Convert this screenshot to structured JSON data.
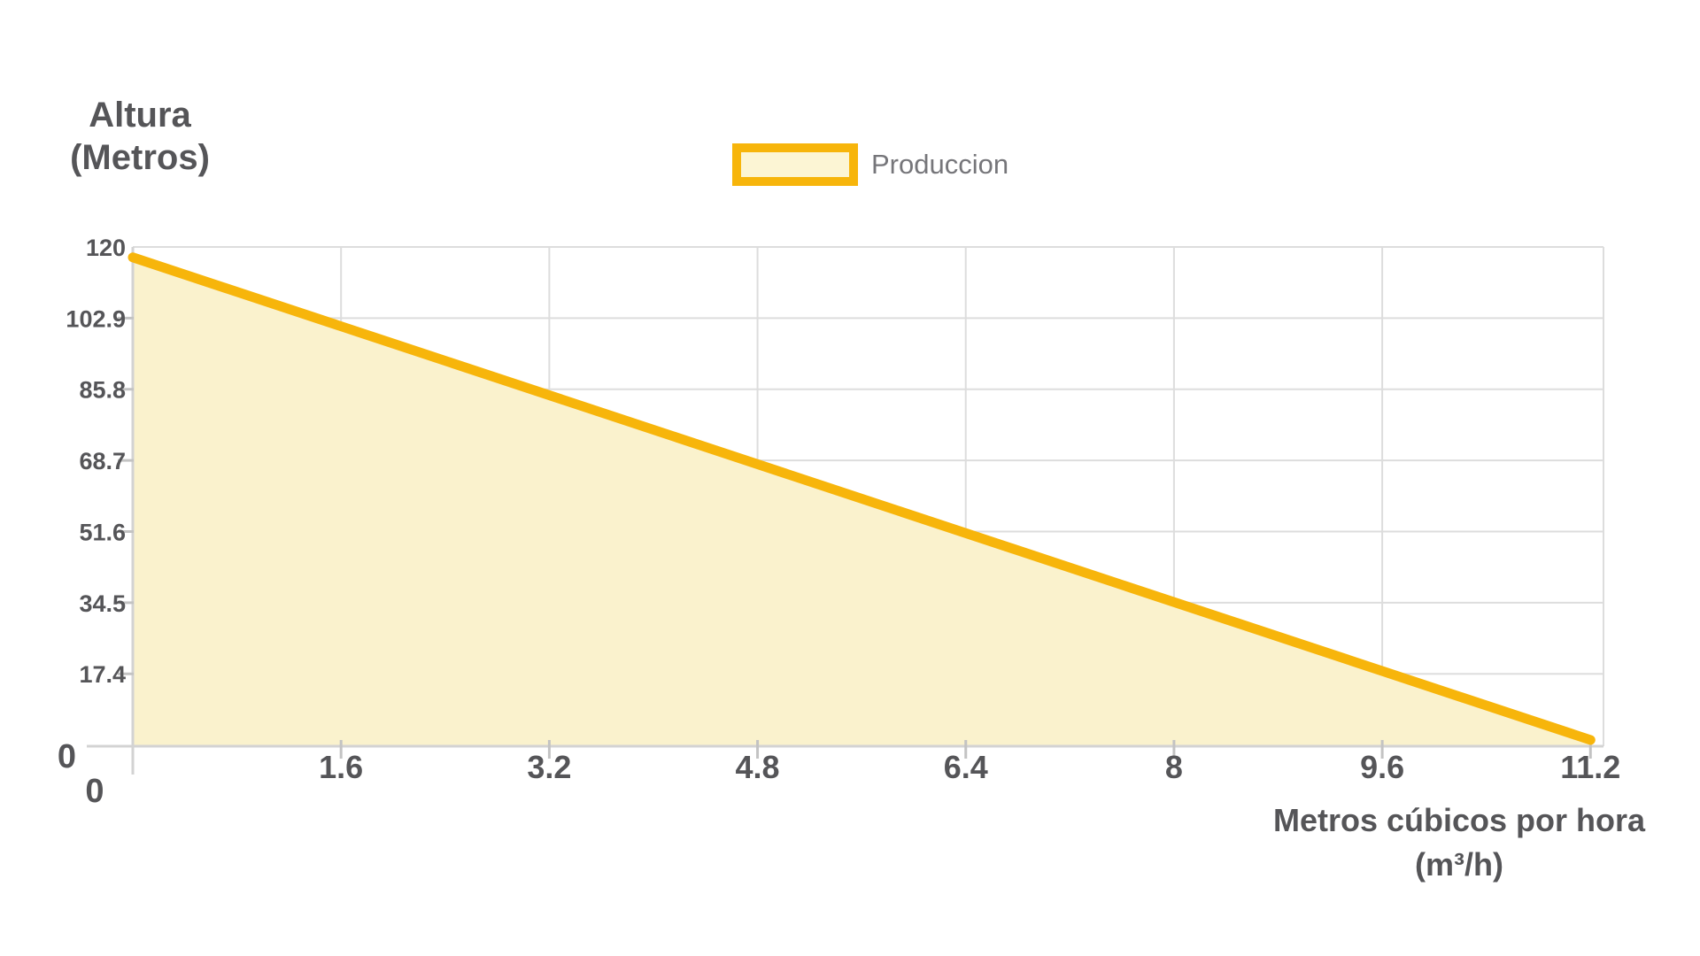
{
  "chart_data": {
    "type": "area",
    "title": "",
    "legend_position": "top-center",
    "grid": true,
    "legend": [
      {
        "label": "Produccion",
        "swatch_border_color": "#F7B50B",
        "swatch_fill_color": "#FCF5D4"
      }
    ],
    "x_axis": {
      "title_lines": [
        "Metros cúbicos por hora",
        "(m³/h)"
      ],
      "min": 0,
      "max": 11.2,
      "max_display": 11.3,
      "ticks": [
        {
          "v": 0,
          "label": "0",
          "grid": false
        },
        {
          "v": 1.6,
          "label": "1.6",
          "grid": true
        },
        {
          "v": 3.2,
          "label": "3.2",
          "grid": true
        },
        {
          "v": 4.8,
          "label": "4.8",
          "grid": true
        },
        {
          "v": 6.4,
          "label": "6.4",
          "grid": true
        },
        {
          "v": 8,
          "label": "8",
          "grid": true
        },
        {
          "v": 9.6,
          "label": "9.6",
          "grid": true
        },
        {
          "v": 11.2,
          "label": "11.2",
          "grid": false
        }
      ]
    },
    "y_axis": {
      "title_lines": [
        "Altura",
        "(Metros)"
      ],
      "min": 0,
      "max": 120,
      "ticks": [
        {
          "v": 0,
          "label": "0"
        },
        {
          "v": 17.4,
          "label": "17.4"
        },
        {
          "v": 34.5,
          "label": "34.5"
        },
        {
          "v": 51.6,
          "label": "51.6"
        },
        {
          "v": 68.7,
          "label": "68.7"
        },
        {
          "v": 85.8,
          "label": "85.8"
        },
        {
          "v": 102.9,
          "label": "102.9"
        },
        {
          "v": 120,
          "label": "120"
        }
      ]
    },
    "series": [
      {
        "name": "Produccion",
        "points": [
          [
            0,
            117.5
          ],
          [
            11.2,
            1.5
          ]
        ],
        "line_color": "#F7B50B",
        "fill_color": "#FAF2CD"
      }
    ],
    "style": {
      "grid_color": "#DDDDDD",
      "axis_color": "#D3D3D3",
      "tick_color": "#C3C3C3",
      "label_color": "#555558",
      "legend_text_color": "#76767A",
      "background": "#FFFFFF"
    }
  }
}
